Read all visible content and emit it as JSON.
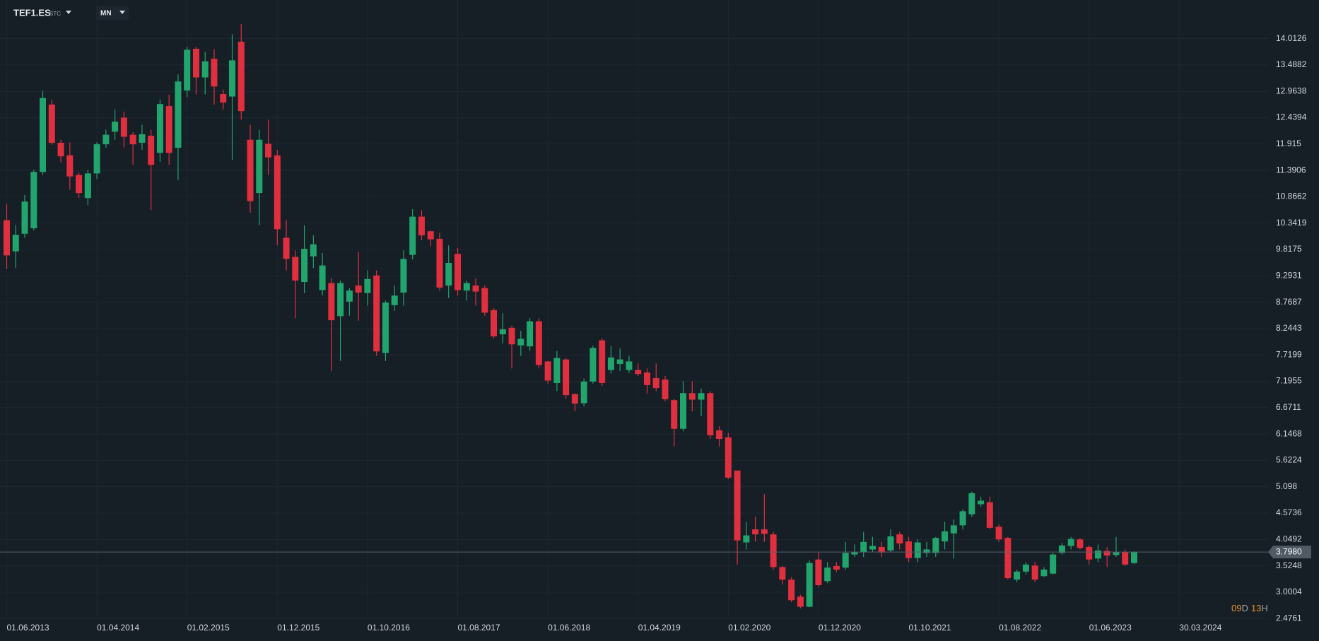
{
  "header": {
    "symbol": "TEF1.ES",
    "exchange": "STC",
    "interval": "MN"
  },
  "countdown": [
    {
      "number": "09",
      "unit": "D"
    },
    {
      "number": "13",
      "unit": "H"
    }
  ],
  "chart_data": {
    "type": "candlestick",
    "up_color": "#22a56d",
    "down_color": "#e0303f",
    "grid": true,
    "ylim": [
      2.24,
      14.78
    ],
    "yticks": [
      14.0126,
      13.4882,
      12.9638,
      12.4394,
      11.915,
      11.3906,
      10.8662,
      10.3419,
      9.8175,
      9.2931,
      8.7687,
      8.2443,
      7.7199,
      7.1955,
      6.6711,
      6.1468,
      5.6224,
      5.098,
      4.5736,
      4.0492,
      3.5248,
      3.0004,
      2.4761
    ],
    "xtick_labels": [
      "01.06.2013",
      "01.04.2014",
      "01.02.2015",
      "01.12.2015",
      "01.10.2016",
      "01.08.2017",
      "01.06.2018",
      "01.04.2019",
      "01.02.2020",
      "01.12.2020",
      "01.10.2021",
      "01.08.2022",
      "01.06.2023",
      "30.03.2024"
    ],
    "last_price": {
      "value": 3.798,
      "label": "3.7980"
    },
    "candles": {
      "open": [
        10.4,
        9.78,
        10.13,
        10.24,
        11.36,
        12.7,
        11.94,
        11.69,
        11.3,
        10.84,
        11.33,
        11.91,
        12.16,
        12.44,
        12.1,
        11.94,
        12.08,
        11.74,
        12.67,
        11.84,
        12.98,
        13.81,
        13.24,
        13.61,
        12.91,
        12.86,
        13.95,
        12.0,
        10.94,
        11.92,
        11.69,
        10.05,
        9.67,
        9.17,
        9.68,
        9.01,
        9.15,
        8.49,
        8.78,
        9.1,
        8.95,
        9.3,
        7.76,
        8.71,
        8.96,
        9.71,
        10.47,
        10.18,
        10.03,
        9.1,
        9.73,
        9.0,
        9.1,
        9.05,
        8.61,
        8.13,
        8.26,
        7.91,
        7.89,
        8.39,
        7.59,
        7.16,
        7.63,
        6.94,
        6.76,
        7.19,
        8.01,
        7.42,
        7.54,
        7.42,
        7.42,
        7.37,
        7.26,
        7.23,
        6.82,
        6.25,
        6.96,
        6.83,
        6.96,
        6.22,
        6.08,
        5.42,
        3.99,
        4.25,
        4.25,
        4.15,
        3.5,
        3.25,
        2.91,
        2.71,
        3.65,
        3.22,
        3.52,
        3.49,
        3.75,
        3.8,
        3.85,
        3.9,
        3.83,
        4.15,
        4.01,
        3.68,
        3.78,
        3.78,
        4.01,
        4.17,
        4.33,
        4.55,
        4.75,
        4.79,
        4.3,
        4.08,
        3.25,
        3.41,
        3.53,
        3.32,
        3.37,
        3.78,
        3.92,
        4.05,
        3.9,
        3.67,
        3.82,
        3.74,
        3.8,
        3.58
      ],
      "high": [
        10.72,
        10.3,
        10.9,
        11.4,
        12.97,
        12.8,
        12.0,
        11.95,
        11.35,
        11.4,
        11.95,
        12.2,
        12.6,
        12.56,
        12.15,
        12.3,
        12.2,
        12.8,
        12.9,
        13.3,
        13.85,
        13.85,
        13.75,
        13.8,
        13.0,
        14.1,
        14.3,
        12.3,
        12.2,
        12.4,
        11.8,
        10.4,
        9.8,
        10.3,
        10.1,
        9.75,
        9.25,
        9.2,
        9.05,
        9.77,
        9.4,
        9.4,
        8.8,
        9.1,
        9.8,
        10.62,
        10.6,
        10.2,
        10.15,
        9.9,
        9.85,
        9.2,
        9.25,
        9.1,
        8.65,
        8.55,
        8.3,
        8.2,
        8.45,
        8.45,
        7.6,
        7.8,
        7.65,
        6.95,
        7.25,
        7.9,
        8.05,
        7.9,
        7.85,
        7.7,
        7.55,
        7.45,
        7.55,
        7.3,
        6.85,
        7.2,
        7.2,
        7.05,
        7.0,
        6.3,
        6.17,
        5.42,
        4.4,
        4.5,
        4.95,
        4.2,
        3.52,
        3.3,
        2.95,
        3.63,
        3.8,
        3.6,
        3.6,
        4.0,
        3.95,
        4.2,
        4.1,
        4.0,
        4.25,
        4.2,
        4.1,
        4.05,
        4.0,
        4.1,
        4.4,
        4.45,
        4.65,
        5.0,
        4.9,
        4.9,
        4.35,
        4.1,
        3.45,
        3.6,
        3.6,
        3.5,
        3.78,
        3.98,
        4.1,
        4.08,
        3.93,
        3.95,
        3.9,
        4.1,
        3.85,
        3.82
      ],
      "low": [
        9.43,
        9.45,
        10.05,
        10.2,
        11.3,
        11.9,
        11.55,
        11.0,
        10.84,
        10.7,
        11.22,
        11.84,
        12.0,
        11.85,
        11.5,
        11.8,
        10.6,
        11.56,
        11.5,
        11.2,
        12.85,
        12.9,
        12.9,
        12.7,
        12.6,
        11.6,
        12.4,
        10.55,
        10.3,
        11.3,
        9.9,
        9.4,
        8.45,
        8.95,
        9.45,
        8.9,
        7.4,
        7.6,
        8.5,
        8.4,
        8.7,
        7.7,
        7.6,
        8.6,
        8.7,
        9.62,
        10.0,
        9.88,
        9.0,
        8.85,
        8.9,
        8.8,
        8.7,
        8.5,
        8.05,
        7.95,
        7.45,
        7.7,
        7.8,
        7.45,
        7.15,
        7.0,
        6.85,
        6.6,
        6.7,
        7.15,
        7.1,
        7.35,
        7.4,
        7.36,
        7.3,
        6.95,
        7.0,
        6.8,
        5.9,
        6.2,
        6.6,
        6.5,
        6.05,
        5.9,
        5.25,
        3.55,
        3.85,
        4.0,
        4.0,
        3.45,
        3.15,
        2.8,
        2.68,
        2.7,
        3.1,
        3.18,
        3.4,
        3.45,
        3.7,
        3.7,
        3.8,
        3.7,
        3.8,
        3.85,
        3.6,
        3.6,
        3.7,
        3.7,
        3.85,
        3.67,
        4.25,
        4.5,
        4.7,
        4.25,
        4.0,
        3.25,
        3.2,
        3.35,
        3.2,
        3.3,
        3.35,
        3.75,
        3.85,
        3.85,
        3.55,
        3.6,
        3.5,
        3.7,
        3.52,
        3.56
      ],
      "close": [
        9.7,
        10.11,
        10.77,
        11.36,
        12.83,
        11.94,
        11.67,
        11.27,
        10.94,
        11.33,
        11.91,
        12.1,
        12.36,
        12.06,
        11.91,
        12.11,
        11.5,
        12.71,
        11.74,
        13.16,
        13.79,
        13.24,
        13.56,
        13.06,
        12.74,
        13.58,
        12.57,
        10.78,
        12.0,
        11.65,
        10.22,
        9.63,
        9.2,
        9.83,
        9.92,
        9.5,
        8.41,
        9.15,
        9.0,
        8.96,
        9.23,
        7.79,
        8.76,
        8.9,
        9.63,
        10.47,
        10.1,
        10.02,
        9.06,
        9.55,
        9.01,
        9.15,
        8.98,
        8.56,
        8.09,
        8.23,
        7.93,
        8.04,
        8.39,
        7.52,
        7.21,
        7.66,
        6.92,
        6.75,
        7.19,
        7.86,
        7.16,
        7.67,
        7.63,
        7.59,
        7.34,
        7.12,
        7.06,
        6.84,
        6.25,
        6.96,
        6.83,
        6.96,
        6.12,
        6.05,
        5.28,
        4.03,
        4.13,
        4.15,
        4.16,
        3.5,
        3.25,
        2.84,
        2.71,
        3.58,
        3.14,
        3.49,
        3.45,
        3.78,
        3.8,
        4.0,
        3.92,
        3.79,
        4.11,
        3.97,
        3.68,
        3.99,
        3.85,
        4.08,
        4.21,
        4.33,
        4.61,
        4.97,
        4.82,
        4.28,
        4.05,
        3.28,
        3.41,
        3.55,
        3.25,
        3.45,
        3.75,
        3.93,
        4.06,
        3.88,
        3.65,
        3.83,
        3.73,
        3.8,
        3.55,
        3.8
      ]
    }
  }
}
